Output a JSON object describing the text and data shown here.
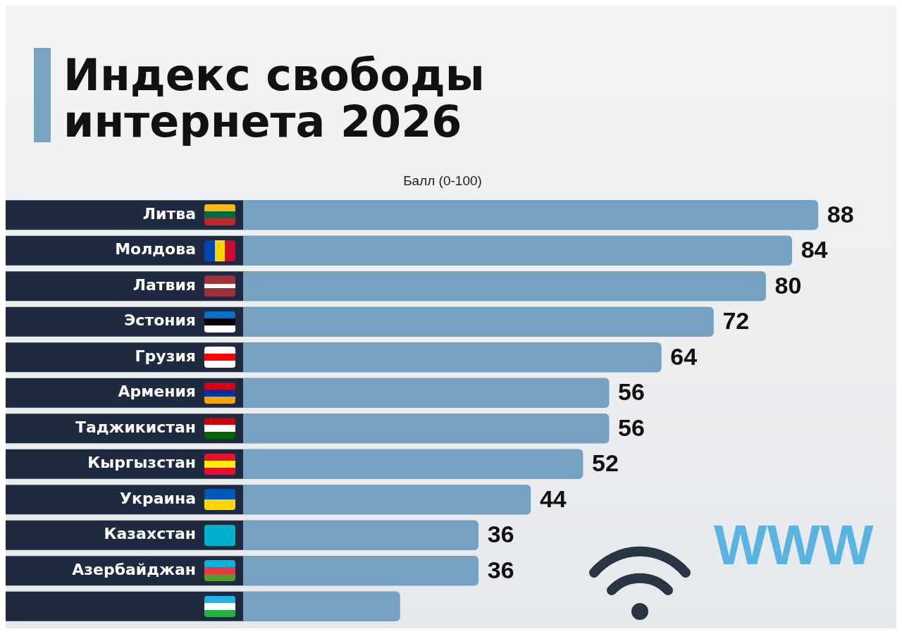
{
  "chart_data": {
    "type": "bar",
    "orientation": "horizontal",
    "title": "Индекс свободы\nинтернета 2026",
    "xlabel": "Балл (0-100)",
    "categories": [
      "Литва",
      "Молдова",
      "Латвия",
      "Эстония",
      "Грузия",
      "Армения",
      "Таджикистан",
      "Кыргызстан",
      "Украина",
      "Казахстан",
      "Азербайджан",
      null
    ],
    "values": [
      88,
      84,
      80,
      72,
      64,
      56,
      56,
      52,
      44,
      36,
      36,
      24
    ],
    "value_labels": [
      "88",
      "84",
      "80",
      "72",
      "64",
      "56",
      "56",
      "52",
      "44",
      "36",
      "36",
      null
    ],
    "color": "#76a1c0",
    "xlim": [
      0,
      100
    ],
    "tick_labels": false,
    "legend": false,
    "annotations": [
      "WWW"
    ]
  }
}
